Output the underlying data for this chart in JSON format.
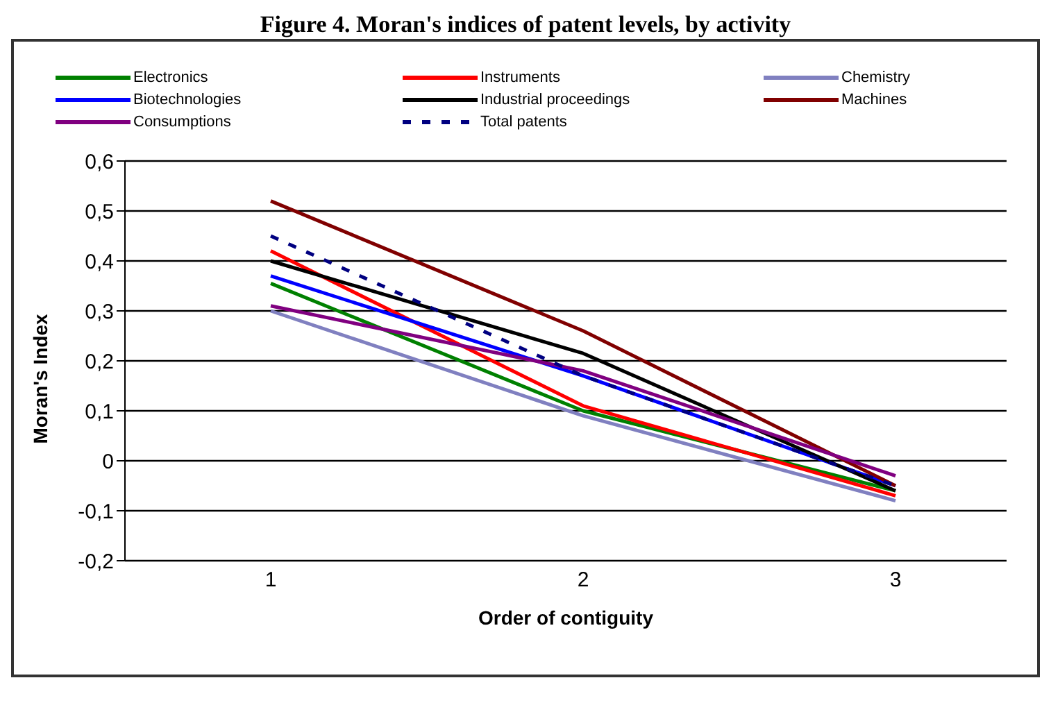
{
  "chart_data": {
    "type": "line",
    "title": "Figure 4. Moran's indices of patent levels, by activity",
    "xlabel": "Order of contiguity",
    "ylabel": "Moran's Index",
    "categories": [
      "1",
      "2",
      "3"
    ],
    "series": [
      {
        "name": "Electronics",
        "color": "#008000",
        "values": [
          0.355,
          0.1,
          -0.06
        ]
      },
      {
        "name": "Instruments",
        "color": "#ff0000",
        "values": [
          0.42,
          0.11,
          -0.07
        ]
      },
      {
        "name": "Chemistry",
        "color": "#8080c0",
        "values": [
          0.3,
          0.09,
          -0.08
        ]
      },
      {
        "name": "Biotechnologies",
        "color": "#0000ff",
        "values": [
          0.37,
          0.17,
          -0.05
        ]
      },
      {
        "name": "Industrial proceedings",
        "color": "#000000",
        "values": [
          0.4,
          0.215,
          -0.06
        ]
      },
      {
        "name": "Machines",
        "color": "#800000",
        "values": [
          0.52,
          0.26,
          -0.05
        ]
      },
      {
        "name": "Consumptions",
        "color": "#800080",
        "values": [
          0.31,
          0.18,
          -0.03
        ]
      },
      {
        "name": "Total patents",
        "color": "#000080",
        "line_style": "dashed",
        "values": [
          0.45,
          0.17,
          -0.05
        ]
      }
    ],
    "ylim": [
      -0.2,
      0.6
    ],
    "yticks": [
      {
        "value": -0.2,
        "label": "-0,2"
      },
      {
        "value": -0.1,
        "label": "-0,1"
      },
      0,
      {
        "value": 0.1,
        "label": "0,1"
      },
      {
        "value": 0.2,
        "label": "0,2"
      },
      {
        "value": 0.3,
        "label": "0,3"
      },
      {
        "value": 0.4,
        "label": "0,4"
      },
      {
        "value": 0.5,
        "label": "0,5"
      },
      {
        "value": 0.6,
        "label": "0,6"
      }
    ],
    "grid": "y",
    "legend": "top",
    "marker": "none",
    "line_style": "solid"
  }
}
